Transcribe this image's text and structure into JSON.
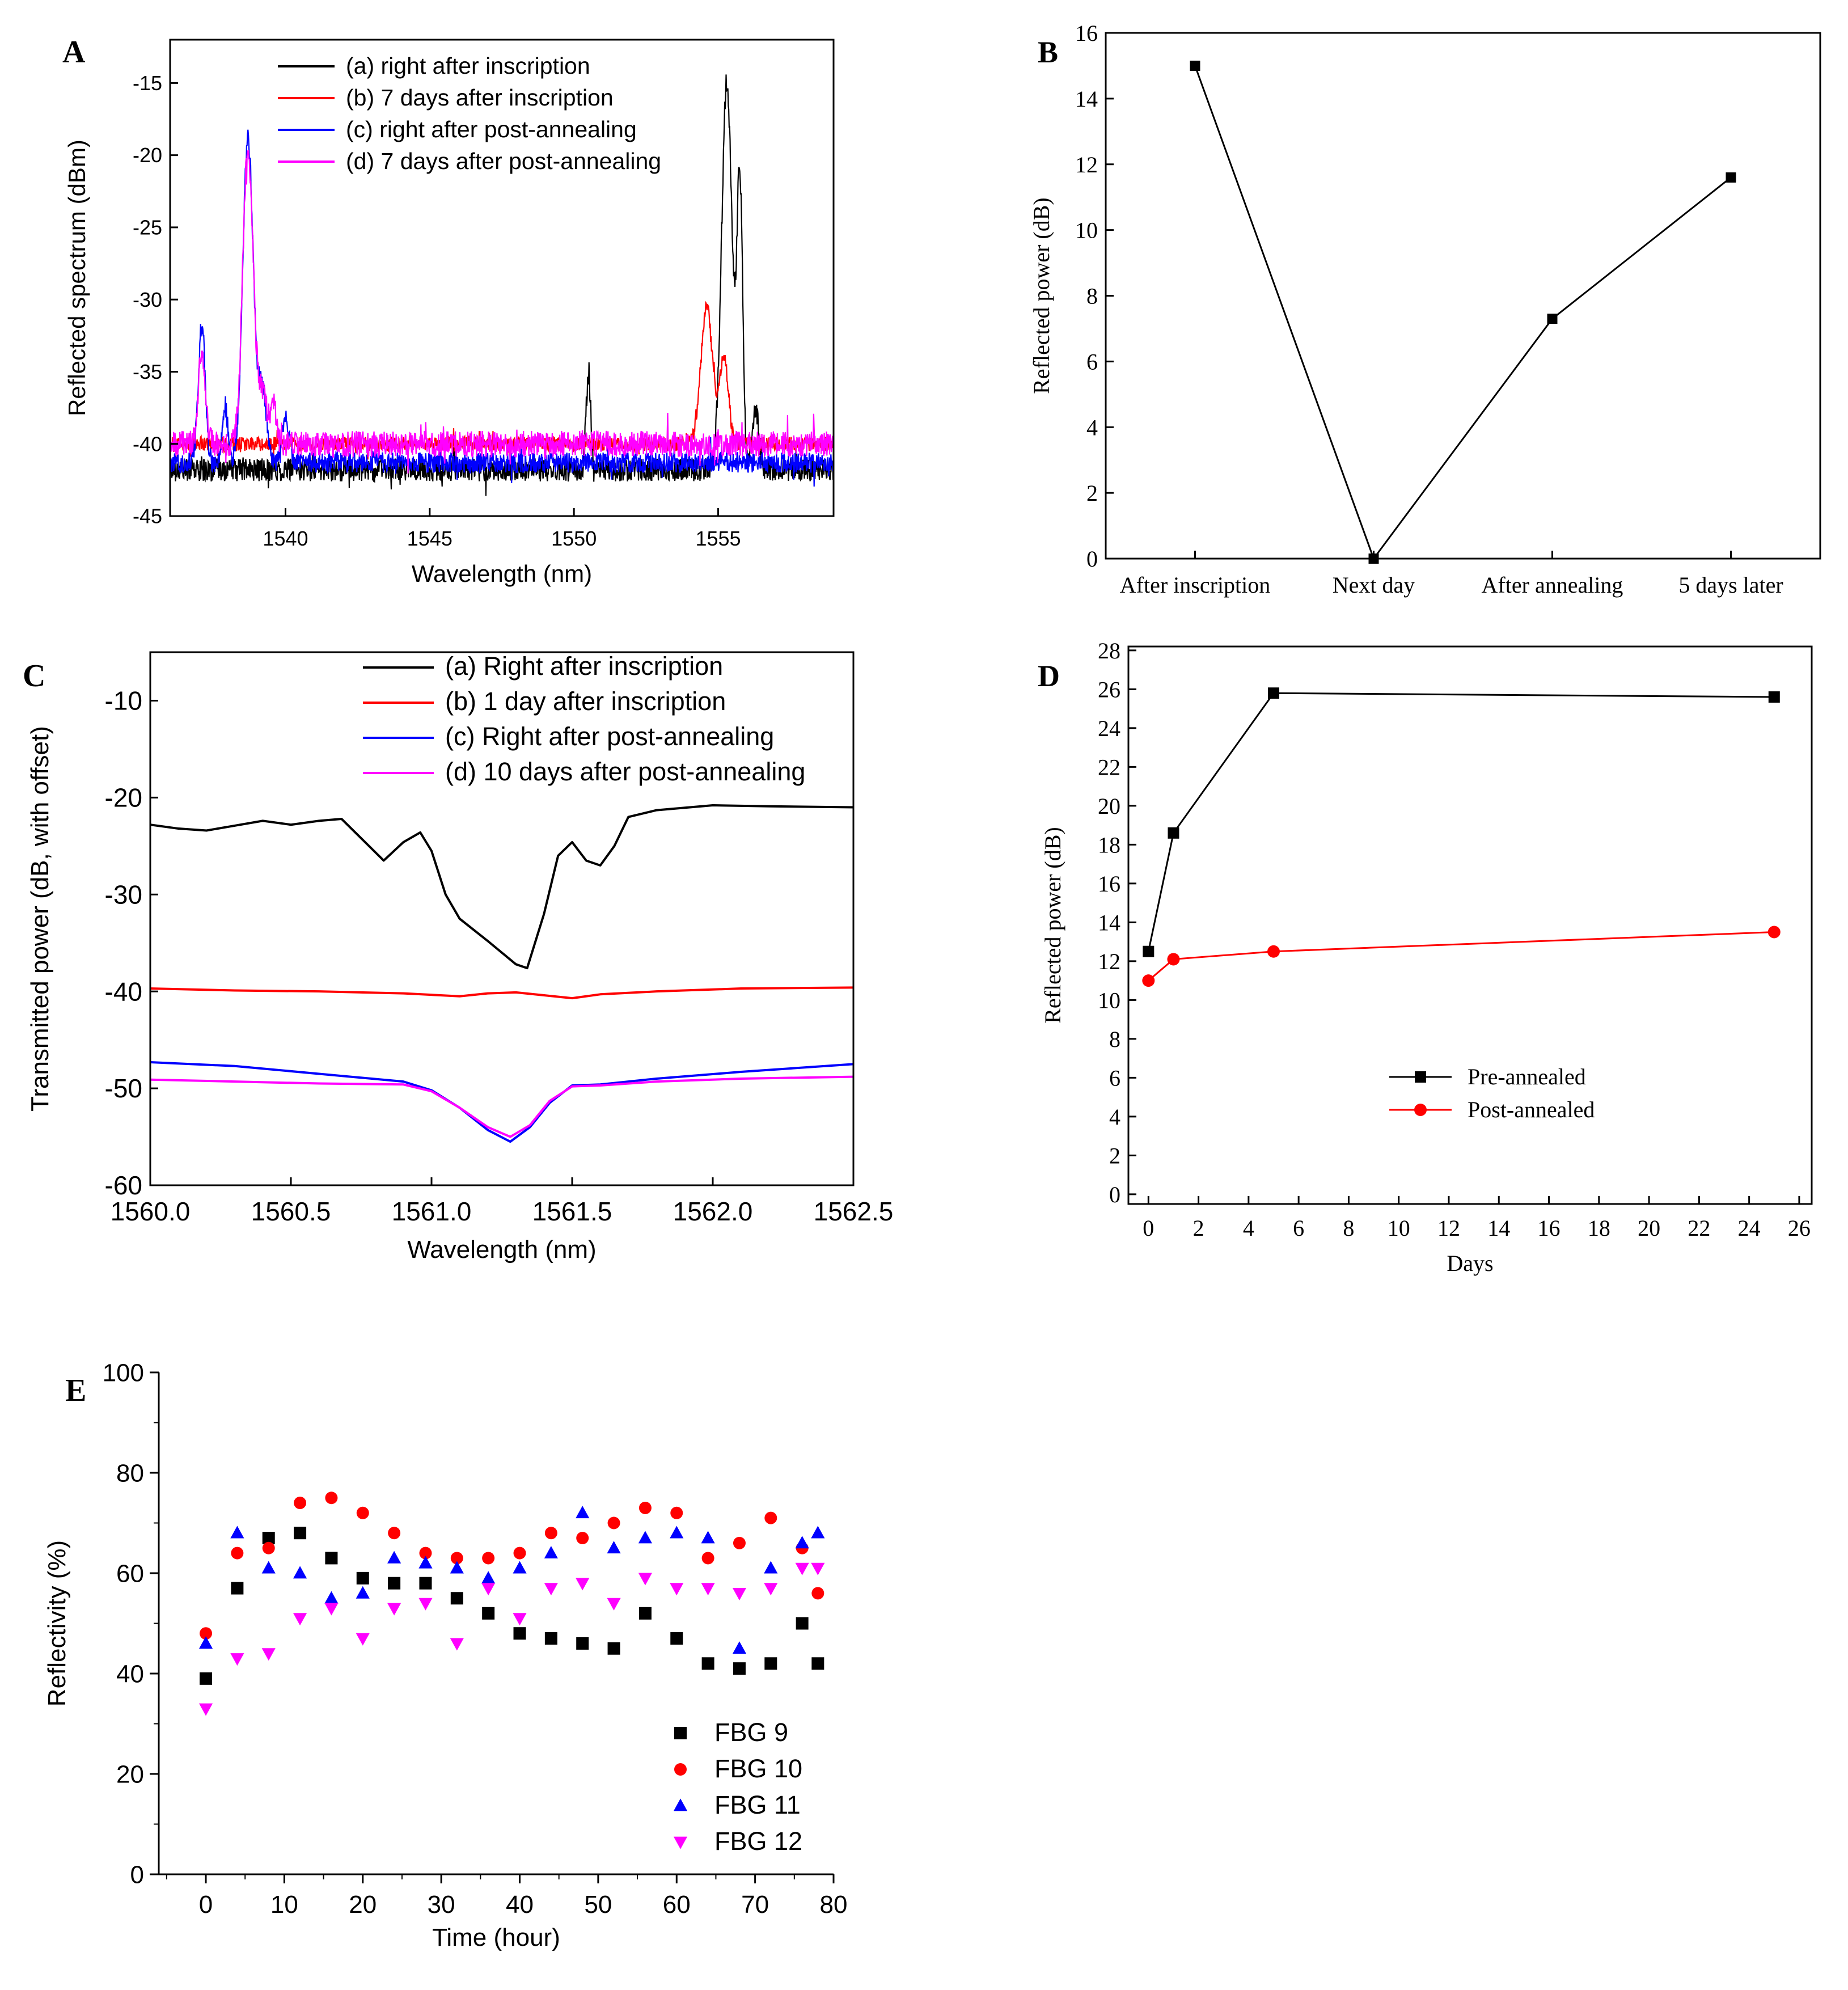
{
  "colors": {
    "black": "#000000",
    "red": "#ff0000",
    "blue": "#0000ff",
    "magenta": "#ff00ff"
  },
  "chart_data": [
    {
      "id": "A",
      "panel_label": "A",
      "type": "line",
      "title": "",
      "xlabel": "Wavelength (nm)",
      "ylabel": "Reflected spectrum (dBm)",
      "xlim": [
        1536.0,
        1559.0
      ],
      "ylim": [
        -45,
        -12
      ],
      "xticks": [
        1540,
        1545,
        1550,
        1555
      ],
      "yticks": [
        -45,
        -40,
        -35,
        -30,
        -25,
        -20,
        -15
      ],
      "xtick_labels": [
        "1540",
        "1545",
        "1550",
        "1555"
      ],
      "ytick_labels": [
        "-45",
        "-40",
        "-35",
        "-30",
        "-25",
        "-20",
        "-15"
      ],
      "legend_position": "top-center",
      "series": [
        {
          "name": "(a) right after inscription",
          "color": "#000000",
          "baseline": -41.8,
          "noise": 0.8,
          "peaks": [
            [
              1550.5,
              6.5,
              0.08
            ],
            [
              1555.3,
              27.0,
              0.18
            ],
            [
              1555.75,
              20.0,
              0.1
            ],
            [
              1556.3,
              4.0,
              0.12
            ]
          ]
        },
        {
          "name": "(b) 7 days after inscription",
          "color": "#ff0000",
          "baseline": -40.0,
          "noise": 0.5,
          "peaks": [
            [
              1554.6,
              9.5,
              0.2
            ],
            [
              1555.2,
              6.0,
              0.15
            ]
          ]
        },
        {
          "name": "(c) right after post-annealing",
          "color": "#0000ff",
          "baseline": -41.3,
          "noise": 0.7,
          "peaks": [
            [
              1537.1,
              9.5,
              0.12
            ],
            [
              1538.7,
              22.5,
              0.18
            ],
            [
              1539.2,
              5.0,
              0.15
            ],
            [
              1537.9,
              4.0,
              0.1
            ],
            [
              1540.0,
              3.0,
              0.12
            ]
          ]
        },
        {
          "name": "(d) 7 days after post-annealing",
          "color": "#ff00ff",
          "baseline": -40.0,
          "noise": 0.9,
          "peaks": [
            [
              1537.1,
              6.5,
              0.12
            ],
            [
              1538.7,
              20.5,
              0.18
            ],
            [
              1539.2,
              3.5,
              0.15
            ],
            [
              1539.6,
              2.5,
              0.12
            ]
          ]
        }
      ]
    },
    {
      "id": "B",
      "panel_label": "B",
      "type": "line",
      "title": "",
      "xlabel": "",
      "ylabel": "Reflected power (dB)",
      "categories": [
        "After inscription",
        "Next day",
        "After annealing",
        "5 days later"
      ],
      "values": [
        15.0,
        0.0,
        7.3,
        11.6
      ],
      "ylim": [
        0,
        16
      ],
      "yticks": [
        0,
        2,
        4,
        6,
        8,
        10,
        12,
        14,
        16
      ],
      "ytick_labels": [
        "0",
        "2",
        "4",
        "6",
        "8",
        "10",
        "12",
        "14",
        "16"
      ],
      "marker": "square",
      "color": "#000000"
    },
    {
      "id": "C",
      "panel_label": "C",
      "type": "line",
      "title": "",
      "xlabel": "Wavelength (nm)",
      "ylabel": "Transmitted power (dB, with offset)",
      "xlim": [
        1560.0,
        1562.5
      ],
      "ylim": [
        -60,
        -5
      ],
      "xticks": [
        1560.0,
        1560.5,
        1561.0,
        1561.5,
        1562.0,
        1562.5
      ],
      "yticks": [
        -60,
        -50,
        -40,
        -30,
        -20,
        -10
      ],
      "xtick_labels": [
        "1560.0",
        "1560.5",
        "1561.0",
        "1561.5",
        "1562.0",
        "1562.5"
      ],
      "ytick_labels": [
        "-60",
        "-50",
        "-40",
        "-30",
        "-20",
        "-10"
      ],
      "legend_position": "top-right",
      "series": [
        {
          "name": "(a) Right after inscription",
          "color": "#000000",
          "x": [
            1560.0,
            1560.1,
            1560.2,
            1560.3,
            1560.4,
            1560.5,
            1560.6,
            1560.68,
            1560.75,
            1560.83,
            1560.9,
            1560.96,
            1561.0,
            1561.05,
            1561.1,
            1561.2,
            1561.3,
            1561.34,
            1561.4,
            1561.45,
            1561.5,
            1561.55,
            1561.6,
            1561.65,
            1561.7,
            1561.8,
            1562.0,
            1562.2,
            1562.5
          ],
          "y": [
            -22.8,
            -23.2,
            -23.4,
            -22.9,
            -22.4,
            -22.8,
            -22.4,
            -22.2,
            -24.2,
            -26.5,
            -24.6,
            -23.6,
            -25.5,
            -30.0,
            -32.5,
            -34.8,
            -37.2,
            -37.6,
            -32.0,
            -26.0,
            -24.6,
            -26.5,
            -27.0,
            -25.0,
            -22.0,
            -21.3,
            -20.8,
            -20.9,
            -21.0
          ]
        },
        {
          "name": "(b) 1 day after inscription",
          "color": "#ff0000",
          "x": [
            1560.0,
            1560.3,
            1560.6,
            1560.9,
            1561.1,
            1561.2,
            1561.3,
            1561.4,
            1561.5,
            1561.6,
            1561.8,
            1562.1,
            1562.5
          ],
          "y": [
            -39.7,
            -39.9,
            -40.0,
            -40.2,
            -40.5,
            -40.2,
            -40.1,
            -40.4,
            -40.7,
            -40.3,
            -40.0,
            -39.7,
            -39.6
          ]
        },
        {
          "name": "(c) Right after post-annealing",
          "color": "#0000ff",
          "x": [
            1560.0,
            1560.3,
            1560.6,
            1560.9,
            1561.0,
            1561.1,
            1561.2,
            1561.28,
            1561.35,
            1561.42,
            1561.5,
            1561.6,
            1561.8,
            1562.1,
            1562.5
          ],
          "y": [
            -47.3,
            -47.7,
            -48.5,
            -49.3,
            -50.2,
            -52.0,
            -54.3,
            -55.5,
            -54.0,
            -51.5,
            -49.7,
            -49.6,
            -49.0,
            -48.3,
            -47.5
          ]
        },
        {
          "name": "(d) 10 days after post-annealing",
          "color": "#ff00ff",
          "x": [
            1560.0,
            1560.3,
            1560.6,
            1560.9,
            1561.0,
            1561.1,
            1561.2,
            1561.28,
            1561.35,
            1561.42,
            1561.5,
            1561.6,
            1561.8,
            1562.1,
            1562.5
          ],
          "y": [
            -49.1,
            -49.3,
            -49.5,
            -49.6,
            -50.3,
            -52.0,
            -54.0,
            -55.0,
            -53.8,
            -51.3,
            -49.8,
            -49.7,
            -49.3,
            -49.0,
            -48.8
          ]
        }
      ]
    },
    {
      "id": "D",
      "panel_label": "D",
      "type": "line",
      "title": "",
      "xlabel": "Days",
      "ylabel": "Reflected power (dB)",
      "xlim": [
        -0.8,
        26.5
      ],
      "ylim": [
        -0.5,
        28.2
      ],
      "xticks": [
        0,
        2,
        4,
        6,
        8,
        10,
        12,
        14,
        16,
        18,
        20,
        22,
        24,
        26
      ],
      "yticks": [
        0,
        2,
        4,
        6,
        8,
        10,
        12,
        14,
        16,
        18,
        20,
        22,
        24,
        26,
        28
      ],
      "xtick_labels": [
        "0",
        "2",
        "4",
        "6",
        "8",
        "10",
        "12",
        "14",
        "16",
        "18",
        "20",
        "22",
        "24",
        "26"
      ],
      "ytick_labels": [
        "0",
        "2",
        "4",
        "6",
        "8",
        "10",
        "12",
        "14",
        "16",
        "18",
        "20",
        "22",
        "24",
        "26",
        "28"
      ],
      "legend_position": "lower-center",
      "series": [
        {
          "name": "Pre-annealed",
          "color": "#000000",
          "marker": "square",
          "x": [
            0,
            1,
            5,
            25
          ],
          "y": [
            12.5,
            18.6,
            25.8,
            25.6
          ]
        },
        {
          "name": "Post-annealed",
          "color": "#ff0000",
          "marker": "circle",
          "x": [
            0,
            1,
            5,
            25
          ],
          "y": [
            11.0,
            12.1,
            12.5,
            13.5
          ]
        }
      ]
    },
    {
      "id": "E",
      "panel_label": "E",
      "type": "scatter",
      "title": "",
      "xlabel": "Time (hour)",
      "ylabel": "Reflectivity (%)",
      "xlim": [
        -6,
        80
      ],
      "ylim": [
        0,
        100
      ],
      "xticks": [
        0,
        10,
        20,
        30,
        40,
        50,
        60,
        70,
        80
      ],
      "yticks": [
        0,
        20,
        40,
        60,
        80,
        100
      ],
      "xtick_labels": [
        "0",
        "10",
        "20",
        "30",
        "40",
        "50",
        "60",
        "70",
        "80"
      ],
      "ytick_labels": [
        "0",
        "20",
        "40",
        "60",
        "80",
        "100"
      ],
      "legend_position": "lower-right",
      "x": [
        0,
        4,
        8,
        12,
        16,
        20,
        24,
        28,
        32,
        36,
        40,
        44,
        48,
        52,
        56,
        60,
        64,
        68,
        72,
        76,
        78
      ],
      "series": [
        {
          "name": "FBG 9",
          "color": "#000000",
          "marker": "square",
          "y": [
            39,
            57,
            67,
            68,
            63,
            59,
            58,
            58,
            55,
            52,
            48,
            47,
            46,
            45,
            52,
            47,
            42,
            41,
            42,
            50,
            42
          ]
        },
        {
          "name": "FBG 10",
          "color": "#ff0000",
          "marker": "circle",
          "y": [
            48,
            64,
            65,
            74,
            75,
            72,
            68,
            64,
            63,
            63,
            64,
            68,
            67,
            70,
            73,
            72,
            63,
            66,
            71,
            65,
            56
          ]
        },
        {
          "name": "FBG 11",
          "color": "#0000ff",
          "marker": "triangle-up",
          "y": [
            46,
            68,
            61,
            60,
            55,
            56,
            63,
            62,
            61,
            59,
            61,
            64,
            72,
            65,
            67,
            68,
            67,
            45,
            61,
            66,
            68
          ]
        },
        {
          "name": "FBG 12",
          "color": "#ff00ff",
          "marker": "triangle-down",
          "y": [
            33,
            43,
            44,
            51,
            53,
            47,
            53,
            54,
            46,
            57,
            51,
            57,
            58,
            54,
            59,
            57,
            57,
            56,
            57,
            61,
            61
          ]
        }
      ]
    }
  ]
}
